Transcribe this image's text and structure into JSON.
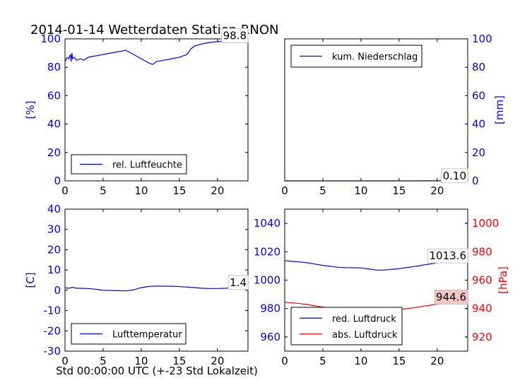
{
  "figure": {
    "title": "2014-01-14 Wetterdaten Station RNON",
    "xlabel": "Std 00:00:00 UTC (+-23 Std Lokalzeit)"
  },
  "colors": {
    "blue": "#0000ff",
    "red": "#ff0000",
    "annot_bg": "#f4c7c7"
  },
  "chart_data": [
    {
      "id": "humidity",
      "type": "line",
      "xlim": [
        0,
        24
      ],
      "ylim": [
        0,
        100
      ],
      "xticks": [
        0,
        5,
        10,
        15,
        20
      ],
      "yticks": [
        0,
        20,
        40,
        60,
        80,
        100
      ],
      "ylabel": "[%]",
      "axis_color": "#0000ff",
      "legend_position": "lower-left",
      "series": [
        {
          "name": "rel. Luftfeuchte",
          "color": "#0000ff",
          "x": [
            0,
            0.3,
            0.5,
            0.7,
            0.8,
            0.9,
            1.0,
            1.2,
            1.5,
            2.0,
            2.5,
            3.0,
            4.0,
            5.0,
            6.0,
            7.0,
            8.0,
            9.0,
            10.0,
            11.0,
            11.5,
            12.0,
            13.0,
            14.0,
            15.0,
            15.5,
            16.0,
            16.5,
            17.0,
            18.0,
            19.0,
            20.0,
            21.0,
            22.0,
            23.0,
            24.0
          ],
          "y": [
            84,
            87,
            86,
            89,
            84,
            90,
            86,
            87,
            85,
            86,
            85,
            87,
            88,
            89,
            90,
            91,
            92,
            89,
            86,
            83,
            82,
            84,
            85,
            86,
            87,
            88,
            89,
            93,
            95,
            96.5,
            97.5,
            98,
            98.5,
            98.8,
            98.8,
            98.8
          ]
        }
      ],
      "annotation": {
        "text": "98.8",
        "x": 24,
        "y": 98.8
      }
    },
    {
      "id": "precipitation",
      "type": "line",
      "xlim": [
        0,
        24
      ],
      "ylim": [
        0,
        100
      ],
      "xticks": [
        0,
        5,
        10,
        15,
        20
      ],
      "yticks": [
        0,
        20,
        40,
        60,
        80,
        100
      ],
      "ylabel": "[mm]",
      "axis_color": "#0000ff",
      "yaxis_side": "right",
      "legend_position": "upper-left",
      "series": [
        {
          "name": "kum. Niederschlag",
          "color": "#0000ff",
          "x": [
            0,
            4,
            8,
            12,
            16,
            20,
            24
          ],
          "y": [
            0,
            0,
            0,
            0,
            0.02,
            0.06,
            0.1
          ]
        }
      ],
      "annotation": {
        "text": "0.10",
        "x": 24,
        "y": 0.1
      }
    },
    {
      "id": "temperature",
      "type": "line",
      "xlim": [
        0,
        24
      ],
      "ylim": [
        -30,
        40
      ],
      "xticks": [
        0,
        5,
        10,
        15,
        20
      ],
      "yticks": [
        -30,
        -20,
        -10,
        0,
        10,
        20,
        30,
        40
      ],
      "ylabel": "[C]",
      "axis_color": "#0000ff",
      "legend_position": "lower-left",
      "series": [
        {
          "name": "Lufttemperatur",
          "color": "#0000ff",
          "x": [
            0,
            0.5,
            1.0,
            1.5,
            2,
            3,
            4,
            5,
            6,
            7,
            8,
            9,
            10,
            11,
            12,
            13,
            14,
            15,
            16,
            17,
            18,
            19,
            20,
            21,
            22,
            23,
            24
          ],
          "y": [
            1.2,
            1.0,
            1.4,
            1.0,
            1.0,
            0.9,
            0.5,
            0.0,
            -0.1,
            -0.2,
            -0.3,
            0.2,
            1.3,
            1.9,
            2.1,
            2.0,
            2.0,
            1.8,
            1.6,
            1.3,
            1.0,
            0.9,
            0.9,
            1.0,
            1.2,
            1.3,
            1.4
          ]
        }
      ],
      "annotation": {
        "text": "1.4",
        "x": 24,
        "y": 1.4
      }
    },
    {
      "id": "pressure",
      "type": "line",
      "xlim": [
        0,
        24
      ],
      "ylim": [
        950,
        1050
      ],
      "y2lim": [
        910,
        1010
      ],
      "xticks": [
        0,
        5,
        10,
        15,
        20
      ],
      "yticks": [
        960,
        980,
        1000,
        1020,
        1040
      ],
      "y2ticks": [
        920,
        940,
        960,
        980,
        1000
      ],
      "y2label": "[hPa]",
      "axis_color": "#0000ff",
      "axis2_color": "#ff0000",
      "legend_position": "lower-left",
      "series": [
        {
          "name": "red. Luftdruck",
          "color": "#0000ff",
          "axis": "left",
          "x": [
            0,
            1,
            2,
            3,
            4,
            5,
            6,
            7,
            8,
            9,
            10,
            11,
            12,
            13,
            14,
            15,
            16,
            17,
            18,
            19,
            20,
            21,
            22,
            23,
            24
          ],
          "y": [
            1013.8,
            1013.2,
            1012.8,
            1012.2,
            1011.3,
            1010.4,
            1009.7,
            1009.1,
            1008.8,
            1008.7,
            1008.6,
            1007.9,
            1007.1,
            1007.1,
            1007.5,
            1008.1,
            1008.9,
            1009.6,
            1010.5,
            1011.3,
            1012.2,
            1012.9,
            1013.4,
            1013.6,
            1013.6
          ]
        },
        {
          "name": "abs. Luftdruck",
          "color": "#ff0000",
          "axis": "right",
          "x": [
            0,
            1,
            2,
            3,
            4,
            5,
            6,
            7,
            8,
            9,
            10,
            11,
            12,
            13,
            14,
            15,
            16,
            17,
            18,
            19,
            20,
            21,
            22,
            23,
            24
          ],
          "y": [
            944.5,
            944.0,
            943.5,
            942.8,
            941.9,
            941.0,
            940.4,
            940.0,
            939.9,
            939.9,
            939.6,
            939.2,
            938.7,
            938.7,
            938.9,
            939.3,
            939.9,
            940.7,
            941.5,
            942.3,
            943.1,
            943.8,
            944.2,
            944.5,
            944.6
          ]
        }
      ],
      "annotations": [
        {
          "text": "1013.6",
          "x": 24,
          "y": 1013.6,
          "axis": "left"
        },
        {
          "text": "944.6",
          "x": 24,
          "y": 944.6,
          "axis": "right",
          "highlight": true
        }
      ]
    }
  ]
}
